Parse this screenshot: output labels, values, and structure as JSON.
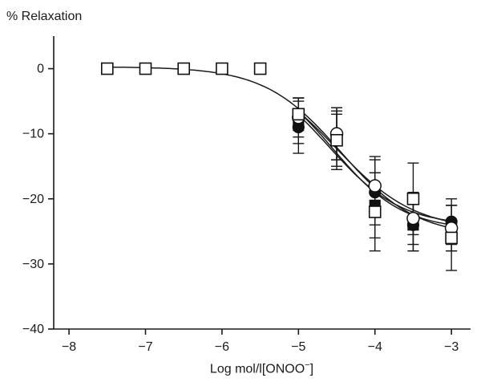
{
  "chart_data": {
    "type": "line",
    "title": "",
    "ylabel": "% Relaxation",
    "xlabel": "Log mol/l[ONOO",
    "xlabel_sup": "−",
    "xlabel_close": "]",
    "xlim": [
      -8.2,
      -2.75
    ],
    "ylim": [
      -40,
      5
    ],
    "x_ticks": [
      -8,
      -7,
      -6,
      -5,
      -4,
      -3
    ],
    "x_tick_labels": [
      "−8",
      "−7",
      "−6",
      "−5",
      "−4",
      "−3"
    ],
    "y_ticks": [
      0,
      -10,
      -20,
      -30,
      -40
    ],
    "y_tick_labels": [
      "0",
      "−10",
      "−20",
      "−30",
      "−40"
    ],
    "grid": false,
    "legend": "none",
    "series": [
      {
        "marker": "filled-circle",
        "x": [
          -5,
          -4.5,
          -4,
          -3.5,
          -3
        ],
        "y": [
          -9,
          -10,
          -19,
          -24,
          -23.5
        ],
        "err": [
          4,
          4,
          5,
          4,
          3.5
        ],
        "fit": {
          "top": 0.2,
          "bottom": -24.2,
          "logec50": -4.6,
          "hill": 0.92
        }
      },
      {
        "marker": "filled-square",
        "x": [
          -5,
          -4.5,
          -4,
          -3.5,
          -3
        ],
        "y": [
          -8,
          -11,
          -21,
          -24,
          -24.5
        ],
        "err": [
          3.5,
          4,
          5,
          4,
          3.5
        ],
        "fit": {
          "top": 0.2,
          "bottom": -24.8,
          "logec50": -4.55,
          "hill": 0.95
        }
      },
      {
        "marker": "open-circle",
        "x": [
          -5,
          -4.5,
          -4,
          -3.5,
          -3
        ],
        "y": [
          -7.5,
          -10,
          -18,
          -23,
          -24.5
        ],
        "err": [
          3,
          4,
          4.5,
          4,
          3.5
        ],
        "fit": {
          "top": 0.2,
          "bottom": -24.8,
          "logec50": -4.5,
          "hill": 0.85
        }
      },
      {
        "marker": "open-square",
        "x": [
          -7.5,
          -7,
          -6.5,
          -6,
          -5.5,
          -5,
          -4.5,
          -4,
          -3.5,
          -3
        ],
        "y": [
          0,
          0,
          0,
          0,
          0,
          -7,
          -11,
          -22,
          -20,
          -26
        ],
        "err": [
          0,
          0,
          0,
          0,
          0,
          2.5,
          4.5,
          6,
          5.5,
          5
        ],
        "fit": {
          "top": 0.3,
          "bottom": -25.8,
          "logec50": -4.45,
          "hill": 0.88
        }
      }
    ]
  }
}
